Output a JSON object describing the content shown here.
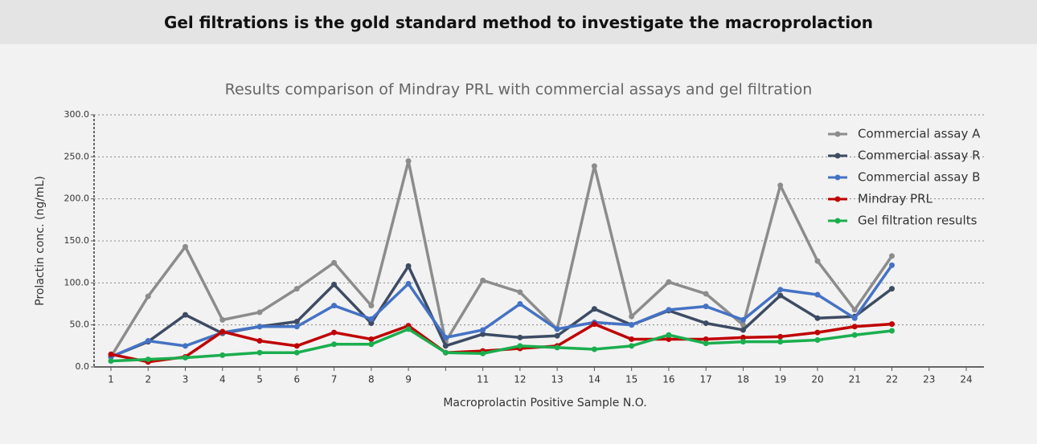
{
  "header": {
    "title": "Gel filtrations is the gold standard method to investigate the macroprolaction"
  },
  "chart_data": {
    "type": "line",
    "title": "Results comparison of Mindray PRL with commercial assays and gel filtration",
    "x_label": "Macroprolactin Positive Sample N.O.",
    "y_label": "Prolactin conc. (ng/mL)",
    "categories": [
      "1",
      "2",
      "3",
      "4",
      "5",
      "6",
      "7",
      "8",
      "9",
      null,
      "11",
      "12",
      "13",
      "14",
      "15",
      "16",
      "17",
      "18",
      "19",
      "20",
      "21",
      "22",
      "23",
      "24"
    ],
    "series": [
      {
        "name": "Commercial assay A",
        "color": "#8c8c8c",
        "values": [
          12,
          84,
          143,
          56,
          65,
          93,
          124,
          73,
          245,
          30,
          103,
          89,
          45,
          239,
          60,
          101,
          87,
          50,
          216,
          126,
          68,
          132,
          null,
          null
        ]
      },
      {
        "name": "Commercial assay R",
        "color": "#3d4b63",
        "values": [
          12,
          30,
          62,
          40,
          48,
          54,
          98,
          52,
          120,
          25,
          39,
          35,
          37,
          69,
          50,
          67,
          52,
          44,
          85,
          58,
          60,
          93,
          null,
          null
        ]
      },
      {
        "name": "Commercial assay B",
        "color": "#4472c4",
        "values": [
          12,
          31,
          25,
          41,
          48,
          48,
          73,
          57,
          99,
          35,
          44,
          75,
          45,
          53,
          50,
          68,
          72,
          56,
          92,
          86,
          58,
          121,
          null,
          null
        ]
      },
      {
        "name": "Mindray PRL",
        "color": "#c00000",
        "values": [
          15,
          6,
          12,
          42,
          31,
          25,
          41,
          33,
          49,
          17,
          19,
          22,
          25,
          51,
          33,
          33,
          33,
          35,
          36,
          41,
          48,
          51,
          null,
          null
        ]
      },
      {
        "name": "Gel filtration results",
        "color": "#1aae4e",
        "values": [
          7,
          9,
          11,
          14,
          17,
          17,
          27,
          27,
          45,
          17,
          16,
          25,
          23,
          21,
          25,
          38,
          28,
          30,
          30,
          32,
          38,
          43,
          null,
          null
        ]
      }
    ],
    "ylim": [
      0,
      300
    ],
    "yticks": [
      {
        "value": 0,
        "label": "0.0"
      },
      {
        "value": 50,
        "label": "50.0"
      },
      {
        "value": 100,
        "label": "100.0"
      },
      {
        "value": 150,
        "label": "150.0"
      },
      {
        "value": 200,
        "label": "200.0"
      },
      {
        "value": 250,
        "label": "250.0"
      },
      {
        "value": 300,
        "label": "300.0"
      }
    ],
    "grid": true,
    "legend": "upper right"
  }
}
